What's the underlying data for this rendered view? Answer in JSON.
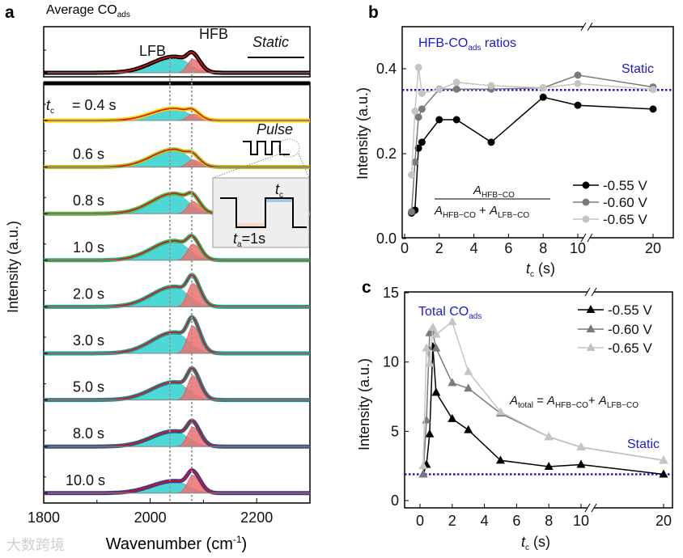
{
  "chart_data": [
    {
      "panel": "a",
      "type": "line",
      "title": {
        "main": "Average CO",
        "sub": "ads"
      },
      "xlabel": {
        "main": "Wavenumber (cm",
        "sup": "-1",
        "end": ")"
      },
      "ylabel": "Intensity (a.u.)",
      "xlim": [
        1800,
        2300
      ],
      "xticks": [
        1800,
        2000,
        2200
      ],
      "peak_labels": {
        "lfb": "LFB",
        "hfb": "HFB"
      },
      "peak_positions": {
        "lfb": 2037,
        "hfb": 2078
      },
      "static_label": "Static",
      "pulse_label": "Pulse",
      "inset": {
        "tc": "t",
        "tc_sub": "c",
        "ta": "t",
        "ta_sub": "a",
        "ta_value": "=1s"
      },
      "tc_prefix": {
        "t": "t",
        "sub": "c"
      },
      "static": {
        "label": "",
        "color": "#000000",
        "lfb_amp": 0.2,
        "hfb_amp": 0.17
      },
      "spectra": [
        {
          "label": "= 0.4 s",
          "color": "#f2d400",
          "lfb_amp": 0.15,
          "hfb_amp": 0.08
        },
        {
          "label": "0.6 s",
          "color": "#a8cc22",
          "lfb_amp": 0.22,
          "hfb_amp": 0.09
        },
        {
          "label": "0.8 s",
          "color": "#4cbb4c",
          "lfb_amp": 0.25,
          "hfb_amp": 0.15
        },
        {
          "label": "1.0 s",
          "color": "#2db36b",
          "lfb_amp": 0.24,
          "hfb_amp": 0.2
        },
        {
          "label": "2.0 s",
          "color": "#23a58a",
          "lfb_amp": 0.25,
          "hfb_amp": 0.29
        },
        {
          "label": "3.0 s",
          "color": "#1f9a96",
          "lfb_amp": 0.26,
          "hfb_amp": 0.34
        },
        {
          "label": "5.0 s",
          "color": "#1a8b96",
          "lfb_amp": 0.22,
          "hfb_amp": 0.3
        },
        {
          "label": "8.0 s",
          "color": "#1e5f8e",
          "lfb_amp": 0.19,
          "hfb_amp": 0.24
        },
        {
          "label": "10.0 s",
          "color": "#3b3a8e",
          "lfb_amp": 0.15,
          "hfb_amp": 0.22
        }
      ]
    },
    {
      "panel": "b",
      "type": "line",
      "title": {
        "main": "HFB-CO",
        "sub": "ads",
        "end": " ratios"
      },
      "xlabel": {
        "t": "t",
        "sub": "c",
        "end": " (s)"
      },
      "ylabel": "Intensity (a.u.)",
      "ylim": [
        0,
        0.5
      ],
      "yticks": [
        "0.0",
        "0.2",
        "0.4"
      ],
      "xticks": [
        "0",
        "2",
        "4",
        "6",
        "8",
        "10",
        "20"
      ],
      "static_label": "Static",
      "static_value": 0.35,
      "formula": {
        "num_a": "A",
        "num_sub": "HFB−CO",
        "den_a1": "A",
        "den_sub1": "HFB−CO",
        "plus": " + ",
        "den_a2": "A",
        "den_sub2": "LFB−CO"
      },
      "x": [
        0.4,
        0.6,
        0.8,
        1,
        2,
        3,
        5,
        8,
        10,
        20
      ],
      "series": [
        {
          "name": "-0.55 V",
          "color": "#000000",
          "values": [
            0.06,
            0.067,
            0.213,
            0.227,
            0.28,
            0.28,
            0.227,
            0.333,
            0.314,
            0.305
          ]
        },
        {
          "name": "-0.60 V",
          "color": "#7a7a7a",
          "values": [
            0.063,
            0.18,
            0.286,
            0.305,
            0.352,
            0.352,
            0.352,
            0.355,
            0.385,
            0.357
          ]
        },
        {
          "name": "-0.65 V",
          "color": "#c4c4c4",
          "values": [
            0.15,
            0.3,
            0.403,
            0.342,
            0.351,
            0.368,
            0.36,
            0.355,
            0.365,
            0.351
          ]
        }
      ]
    },
    {
      "panel": "c",
      "type": "line",
      "title": {
        "main": "Total CO",
        "sub": "ads"
      },
      "xlabel": {
        "t": "t",
        "sub": "c",
        "end": " (s)"
      },
      "ylabel": "Intensity (a.u.)",
      "ylim": [
        -0.5,
        15
      ],
      "yticks": [
        "0",
        "5",
        "10",
        "15"
      ],
      "xticks": [
        "0",
        "2",
        "4",
        "6",
        "8",
        "10",
        "20"
      ],
      "static_label": "Static",
      "static_value": 1.9,
      "formula": {
        "a1": "A",
        "sub1": "total",
        "eq": " = ",
        "a2": "A",
        "sub2": "HFB−CO",
        "plus": "+ ",
        "a3": "A",
        "sub3": "LFB−CO"
      },
      "x": [
        0.2,
        0.4,
        0.6,
        0.8,
        1,
        2,
        3,
        5,
        8,
        10,
        20
      ],
      "series": [
        {
          "name": "-0.55 V",
          "color": "#000000",
          "values": [
            1.9,
            2.6,
            4.8,
            11.1,
            7.8,
            5.9,
            5.1,
            2.9,
            2.45,
            2.6,
            1.9
          ]
        },
        {
          "name": "-0.60 V",
          "color": "#7a7a7a",
          "values": [
            1.9,
            5.8,
            12.1,
            12.1,
            11.0,
            8.5,
            8.1,
            6.3,
            4.6,
            3.85,
            2.9
          ]
        },
        {
          "name": "-0.65 V",
          "color": "#c4c4c4",
          "values": [
            2.5,
            11.0,
            9.9,
            12.5,
            12.0,
            12.9,
            9.3,
            6.4,
            4.6,
            3.85,
            2.9
          ]
        }
      ]
    }
  ],
  "panel_labels": [
    "a",
    "b",
    "c"
  ],
  "watermark": "大数跨境",
  "static_color": "#1a1acc"
}
